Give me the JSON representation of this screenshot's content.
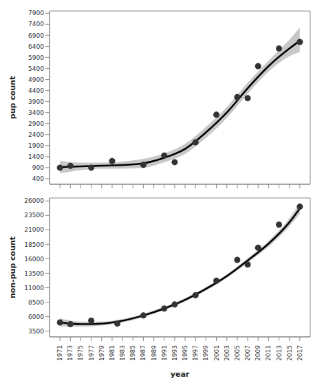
{
  "chart_data": [
    {
      "type": "scatter",
      "ylabel": "pup count",
      "tick_labels": "y",
      "grid": false,
      "xlim": [
        1969,
        2019
      ],
      "xticks": [
        1971,
        1973,
        1975,
        1977,
        1979,
        1981,
        1983,
        1985,
        1987,
        1989,
        1991,
        1993,
        1995,
        1997,
        1999,
        2001,
        2003,
        2005,
        2007,
        2009,
        2011,
        2013,
        2015,
        2017
      ],
      "ylim": [
        150,
        8000
      ],
      "yticks": [
        400,
        900,
        1400,
        1900,
        2400,
        2900,
        3400,
        3900,
        4400,
        4900,
        5400,
        5900,
        6400,
        6900,
        7400,
        7900
      ],
      "series": [
        {
          "type": "area",
          "color": "#c8c8c8",
          "x": [
            1971,
            1975,
            1979,
            1983,
            1987,
            1991,
            1995,
            1999,
            2003,
            2007,
            2011,
            2015,
            2017
          ],
          "lower": [
            640,
            790,
            850,
            860,
            900,
            1150,
            1520,
            2250,
            3150,
            4250,
            5250,
            5950,
            6150
          ],
          "upper": [
            1220,
            1130,
            1130,
            1180,
            1300,
            1550,
            1980,
            2750,
            3650,
            4750,
            5750,
            6700,
            7250
          ]
        },
        {
          "type": "line",
          "color": "#000000",
          "x": [
            1971,
            1975,
            1979,
            1983,
            1987,
            1991,
            1995,
            1999,
            2003,
            2007,
            2011,
            2015,
            2017
          ],
          "values": [
            930,
            960,
            990,
            1020,
            1100,
            1350,
            1750,
            2500,
            3400,
            4500,
            5500,
            6300,
            6650
          ]
        },
        {
          "type": "scatter",
          "color": "#333333",
          "marker": "circle",
          "x": [
            1971,
            1973,
            1977,
            1981,
            1987,
            1991,
            1993,
            1997,
            2001,
            2005,
            2007,
            2009,
            2013,
            2017
          ],
          "values": [
            900,
            980,
            900,
            1200,
            1030,
            1450,
            1150,
            2050,
            3300,
            4100,
            4050,
            5500,
            6300,
            6600
          ]
        }
      ]
    },
    {
      "type": "scatter",
      "ylabel": "non-pup count",
      "xlabel": "year",
      "grid": false,
      "xlim": [
        1969,
        2019
      ],
      "xticks": [
        1971,
        1973,
        1975,
        1977,
        1979,
        1981,
        1983,
        1985,
        1987,
        1989,
        1991,
        1993,
        1995,
        1997,
        1999,
        2001,
        2003,
        2005,
        2007,
        2009,
        2011,
        2013,
        2015,
        2017
      ],
      "ylim": [
        2500,
        26500
      ],
      "yticks": [
        3500,
        6000,
        8500,
        11000,
        13500,
        16000,
        18500,
        21000,
        23500,
        26000
      ],
      "series": [
        {
          "type": "area",
          "color": "#c8c8c8",
          "x": [
            1971,
            1975,
            1979,
            1983,
            1987,
            1991,
            1995,
            1999,
            2003,
            2007,
            2011,
            2015,
            2017
          ],
          "lower": [
            4300,
            4250,
            4450,
            5000,
            5900,
            7100,
            8600,
            10500,
            12700,
            15300,
            18100,
            21600,
            23800
          ],
          "upper": [
            5700,
            5150,
            5150,
            5600,
            6500,
            7700,
            9200,
            11100,
            13300,
            16100,
            19100,
            23000,
            25600
          ]
        },
        {
          "type": "line",
          "color": "#000000",
          "x": [
            1971,
            1975,
            1979,
            1983,
            1987,
            1991,
            1995,
            1999,
            2003,
            2007,
            2011,
            2015,
            2017
          ],
          "values": [
            5000,
            4700,
            4800,
            5300,
            6200,
            7400,
            8900,
            10800,
            13000,
            15700,
            18600,
            22300,
            24700
          ]
        },
        {
          "type": "scatter",
          "color": "#333333",
          "marker": "circle",
          "x": [
            1971,
            1973,
            1977,
            1982,
            1987,
            1991,
            1993,
            1997,
            2001,
            2005,
            2007,
            2009,
            2013,
            2017
          ],
          "values": [
            5000,
            4700,
            5300,
            4800,
            6200,
            7400,
            8100,
            9700,
            12200,
            15800,
            15000,
            17900,
            21900,
            25000
          ]
        }
      ]
    }
  ]
}
